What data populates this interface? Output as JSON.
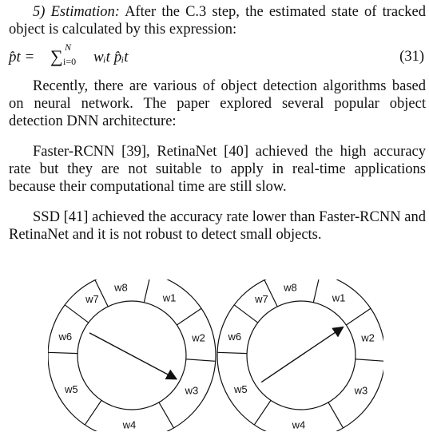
{
  "section": {
    "number": "5)",
    "title": "Estimation:",
    "intro": "After the C.3 step, the estimated state of tracked object is calculated by this expression:"
  },
  "equation": {
    "lhs": "p̂t =",
    "sum_symbol": "∑",
    "upper_limit": "N",
    "lower_limit": "i=0",
    "body": "wᵢt p̂ᵢt",
    "number": "(31)"
  },
  "paragraphs": [
    "Recently, there are various of object detection algorithms based on neural network. The paper explored several popular object detection DNN architecture:",
    "Faster-RCNN [39], RetinaNet [40] achieved the high accuracy rate but they are not suitable to apply in real-time applications because their computational time are still slow.",
    "SSD [41] achieved the accuracy rate lower than Faster-RCNN and RetinaNet and it is not robust to detect small objects."
  ],
  "figure": {
    "wheels": [
      {
        "segments": [
          "w1",
          "w2",
          "w3",
          "w4",
          "w5",
          "w6",
          "w7",
          "w8"
        ],
        "pointer_toward": "w3"
      },
      {
        "segments": [
          "w1",
          "w2",
          "w3",
          "w4",
          "w5",
          "w6",
          "w7",
          "w8"
        ],
        "pointer_toward": "w2"
      }
    ]
  }
}
